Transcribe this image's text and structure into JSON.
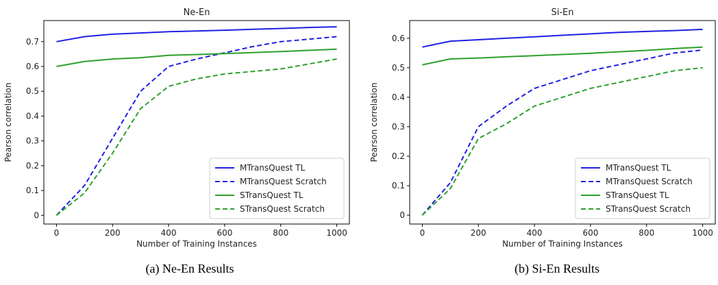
{
  "captions": [
    "(a) Ne-En Results",
    "(b) Si-En Results"
  ],
  "chart_data": [
    {
      "type": "line",
      "title": "Ne-En",
      "xlabel": "Number of Training Instances",
      "ylabel": "Pearson correlation",
      "xlim": [
        -45,
        1045
      ],
      "ylim": [
        -0.035,
        0.785
      ],
      "xticks": [
        0,
        200,
        400,
        600,
        800,
        1000
      ],
      "yticks": [
        0.0,
        0.1,
        0.2,
        0.3,
        0.4,
        0.5,
        0.6,
        0.7
      ],
      "grid": false,
      "legend_position": "lower right",
      "series": [
        {
          "name": "MTransQuest TL",
          "color": "#1f1fe6",
          "dash": "solid",
          "x": [
            0,
            100,
            200,
            300,
            400,
            500,
            600,
            700,
            800,
            900,
            1000
          ],
          "y": [
            0.7,
            0.72,
            0.73,
            0.735,
            0.74,
            0.743,
            0.746,
            0.75,
            0.753,
            0.757,
            0.76
          ]
        },
        {
          "name": "MTransQuest Scratch",
          "color": "#1f1fe6",
          "dash": "dashed",
          "x": [
            0,
            100,
            200,
            300,
            400,
            500,
            600,
            700,
            800,
            900,
            1000
          ],
          "y": [
            0.0,
            0.12,
            0.31,
            0.5,
            0.6,
            0.63,
            0.655,
            0.68,
            0.7,
            0.71,
            0.72
          ]
        },
        {
          "name": "STransQuest TL",
          "color": "#2ca02c",
          "dash": "solid",
          "x": [
            0,
            100,
            200,
            300,
            400,
            500,
            600,
            700,
            800,
            900,
            1000
          ],
          "y": [
            0.6,
            0.62,
            0.63,
            0.635,
            0.645,
            0.648,
            0.652,
            0.656,
            0.66,
            0.665,
            0.67
          ]
        },
        {
          "name": "STransQuest Scratch",
          "color": "#2ca02c",
          "dash": "dashed",
          "x": [
            0,
            100,
            200,
            300,
            400,
            500,
            600,
            700,
            800,
            900,
            1000
          ],
          "y": [
            0.0,
            0.09,
            0.25,
            0.43,
            0.52,
            0.55,
            0.57,
            0.58,
            0.59,
            0.61,
            0.63
          ]
        }
      ]
    },
    {
      "type": "line",
      "title": "Si-En",
      "xlabel": "Number of Training Instances",
      "ylabel": "Pearson correlation",
      "xlim": [
        -45,
        1045
      ],
      "ylim": [
        -0.03,
        0.66
      ],
      "xticks": [
        0,
        200,
        400,
        600,
        800,
        1000
      ],
      "yticks": [
        0.0,
        0.1,
        0.2,
        0.3,
        0.4,
        0.5,
        0.6
      ],
      "grid": false,
      "legend_position": "lower right",
      "series": [
        {
          "name": "MTransQuest TL",
          "color": "#1f1fe6",
          "dash": "solid",
          "x": [
            0,
            100,
            200,
            300,
            400,
            500,
            600,
            700,
            800,
            900,
            1000
          ],
          "y": [
            0.57,
            0.59,
            0.595,
            0.6,
            0.605,
            0.61,
            0.615,
            0.62,
            0.623,
            0.626,
            0.63
          ]
        },
        {
          "name": "MTransQuest Scratch",
          "color": "#1f1fe6",
          "dash": "dashed",
          "x": [
            0,
            100,
            200,
            300,
            400,
            500,
            600,
            700,
            800,
            900,
            1000
          ],
          "y": [
            0.0,
            0.11,
            0.3,
            0.37,
            0.43,
            0.46,
            0.49,
            0.51,
            0.53,
            0.55,
            0.56
          ]
        },
        {
          "name": "STransQuest TL",
          "color": "#2ca02c",
          "dash": "solid",
          "x": [
            0,
            100,
            200,
            300,
            400,
            500,
            600,
            700,
            800,
            900,
            1000
          ],
          "y": [
            0.51,
            0.53,
            0.533,
            0.537,
            0.541,
            0.545,
            0.549,
            0.554,
            0.559,
            0.565,
            0.57
          ]
        },
        {
          "name": "STransQuest Scratch",
          "color": "#2ca02c",
          "dash": "dashed",
          "x": [
            0,
            100,
            200,
            300,
            400,
            500,
            600,
            700,
            800,
            900,
            1000
          ],
          "y": [
            0.0,
            0.09,
            0.26,
            0.31,
            0.37,
            0.4,
            0.43,
            0.45,
            0.47,
            0.49,
            0.5
          ]
        }
      ]
    }
  ]
}
